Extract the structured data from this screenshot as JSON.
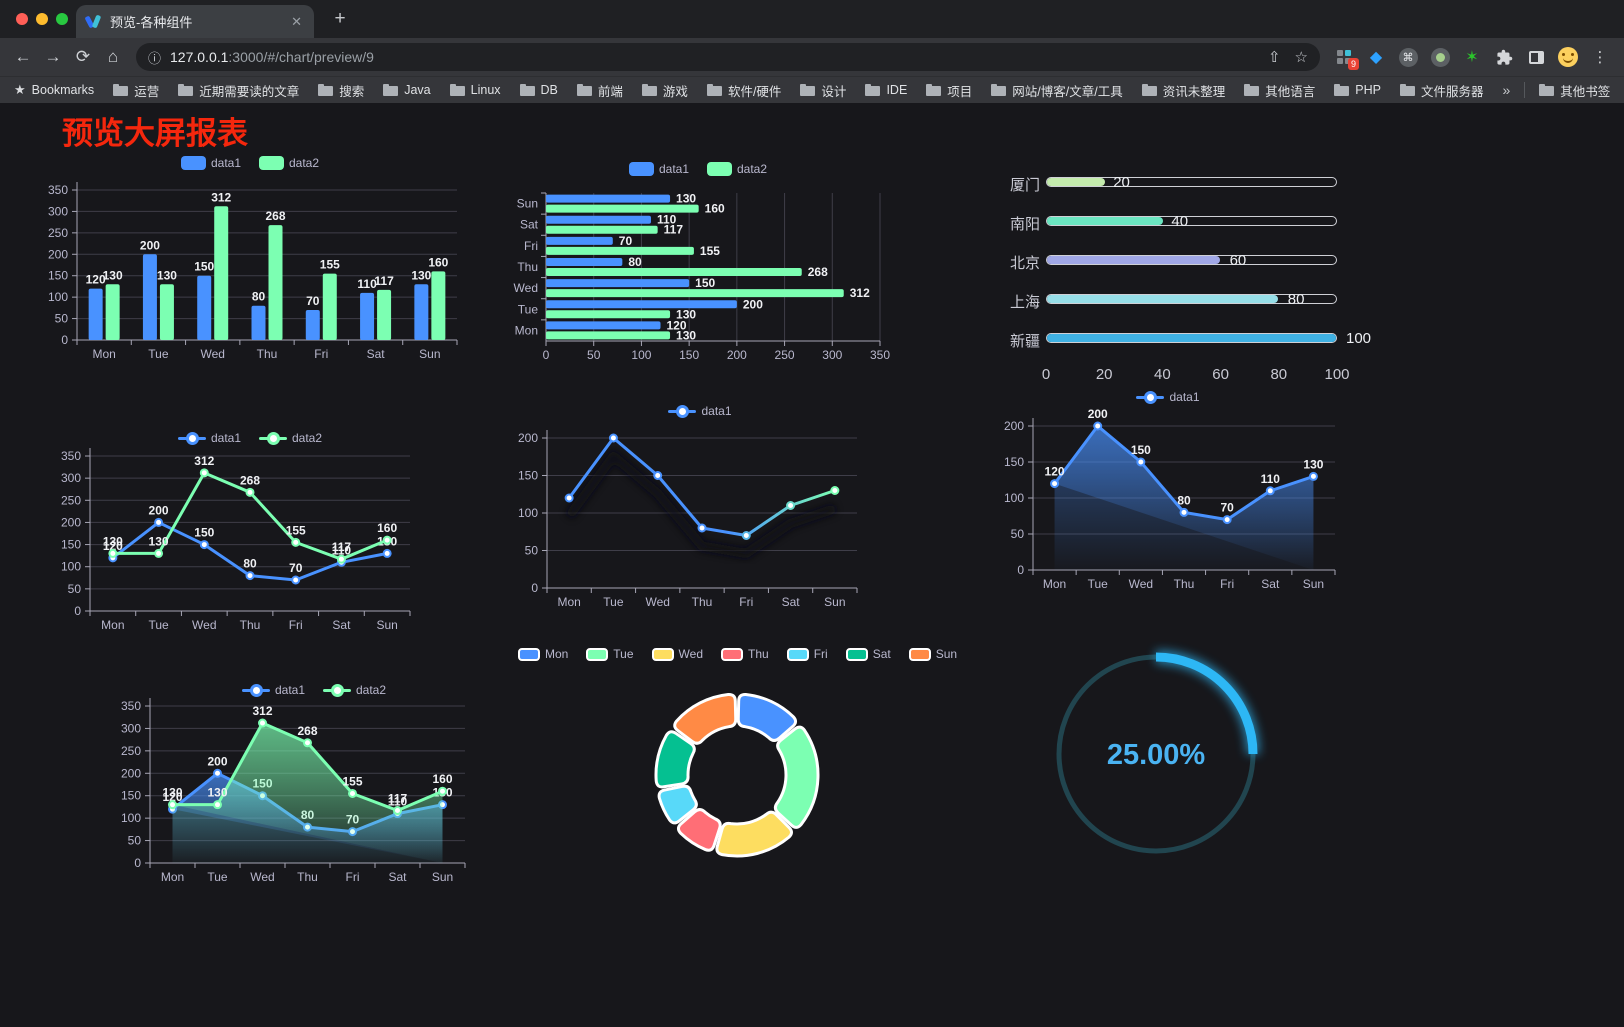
{
  "browser": {
    "tab": {
      "title": "预览-各种组件",
      "close_glyph": "✕"
    },
    "new_tab_glyph": "+",
    "toolbar": {
      "back_glyph": "←",
      "forward_glyph": "→",
      "reload_glyph": "⟳",
      "home_glyph": "⌂",
      "info_glyph": "ⓘ",
      "url_host": "127.0.0.1",
      "url_rest": ":3000/#/chart/preview/9",
      "share_glyph": "⇧",
      "star_glyph": "☆",
      "ext": {
        "badge": "9",
        "gem_glyph": "◆",
        "cmd_glyph": "⌘",
        "star_glyph": "✶",
        "menu_glyph": "⋮"
      }
    },
    "bookmarks": {
      "star_glyph": "★",
      "root_label": "Bookmarks",
      "folders": [
        "运营",
        "近期需要读的文章",
        "搜索",
        "Java",
        "Linux",
        "DB",
        "前端",
        "游戏",
        "软件/硬件",
        "设计",
        "IDE",
        "项目",
        "网站/博客/文章/工具",
        "资讯未整理",
        "其他语言",
        "PHP",
        "文件服务器"
      ],
      "overflow_glyph": "»",
      "other_label": "其他书签"
    }
  },
  "page": {
    "title": "预览大屏报表"
  },
  "chart_data": [
    {
      "id": "bar-vertical",
      "type": "bar",
      "categories": [
        "Mon",
        "Tue",
        "Wed",
        "Thu",
        "Fri",
        "Sat",
        "Sun"
      ],
      "series": [
        {
          "name": "data1",
          "color": "#4992ff",
          "values": [
            120,
            200,
            150,
            80,
            70,
            110,
            130
          ]
        },
        {
          "name": "data2",
          "color": "#7cffb2",
          "values": [
            130,
            130,
            312,
            268,
            155,
            117,
            160
          ]
        }
      ],
      "ylim": [
        0,
        350
      ],
      "yticks": [
        0,
        50,
        100,
        150,
        200,
        250,
        300,
        350
      ],
      "legend_position": "top",
      "grid": true,
      "value_labels": true
    },
    {
      "id": "bar-horizontal",
      "type": "bar-horizontal",
      "categories_top_to_bottom": [
        "Sun",
        "Sat",
        "Fri",
        "Thu",
        "Wed",
        "Tue",
        "Mon"
      ],
      "series": [
        {
          "name": "data1",
          "color": "#4992ff",
          "values": [
            130,
            110,
            70,
            80,
            150,
            200,
            120
          ]
        },
        {
          "name": "data2",
          "color": "#7cffb2",
          "values": [
            160,
            117,
            155,
            268,
            312,
            130,
            130
          ]
        }
      ],
      "xlim": [
        0,
        350
      ],
      "xticks": [
        0,
        50,
        100,
        150,
        200,
        250,
        300,
        350
      ],
      "legend_position": "top",
      "grid": true,
      "value_labels": true
    },
    {
      "id": "progress-bars",
      "type": "progress",
      "max": 100,
      "axis_ticks": [
        0,
        20,
        40,
        60,
        80,
        100
      ],
      "items": [
        {
          "label": "厦门",
          "value": 20,
          "color": "#c4ebad"
        },
        {
          "label": "南阳",
          "value": 40,
          "color": "#6be6c1"
        },
        {
          "label": "北京",
          "value": 60,
          "color": "#a0a7e6"
        },
        {
          "label": "上海",
          "value": 80,
          "color": "#96dee8"
        },
        {
          "label": "新疆",
          "value": 100,
          "color": "#3fb1e3"
        }
      ]
    },
    {
      "id": "line-two-series",
      "type": "line",
      "categories": [
        "Mon",
        "Tue",
        "Wed",
        "Thu",
        "Fri",
        "Sat",
        "Sun"
      ],
      "series": [
        {
          "name": "data1",
          "color": "#4992ff",
          "values": [
            120,
            200,
            150,
            80,
            70,
            110,
            130
          ]
        },
        {
          "name": "data2",
          "color": "#7cffb2",
          "values": [
            130,
            130,
            312,
            268,
            155,
            117,
            160
          ]
        }
      ],
      "ylim": [
        0,
        350
      ],
      "yticks": [
        0,
        50,
        100,
        150,
        200,
        250,
        300,
        350
      ],
      "legend_position": "top",
      "value_labels": true
    },
    {
      "id": "line-gradient",
      "type": "line",
      "categories": [
        "Mon",
        "Tue",
        "Wed",
        "Thu",
        "Fri",
        "Sat",
        "Sun"
      ],
      "series": [
        {
          "name": "data1",
          "color": "#4992ff",
          "gradient": [
            "#4992ff",
            "#7cffb2"
          ],
          "values": [
            120,
            200,
            150,
            80,
            70,
            110,
            130
          ],
          "shadow": true
        }
      ],
      "ylim": [
        0,
        200
      ],
      "yticks": [
        0,
        50,
        100,
        150,
        200
      ],
      "legend_position": "top",
      "value_labels": false
    },
    {
      "id": "area-single",
      "type": "area",
      "categories": [
        "Mon",
        "Tue",
        "Wed",
        "Thu",
        "Fri",
        "Sat",
        "Sun"
      ],
      "series": [
        {
          "name": "data1",
          "color": "#4992ff",
          "area": true,
          "values": [
            120,
            200,
            150,
            80,
            70,
            110,
            130
          ]
        }
      ],
      "ylim": [
        0,
        200
      ],
      "yticks": [
        0,
        50,
        100,
        150,
        200
      ],
      "legend_position": "top",
      "value_labels": true
    },
    {
      "id": "area-two-series",
      "type": "area",
      "categories": [
        "Mon",
        "Tue",
        "Wed",
        "Thu",
        "Fri",
        "Sat",
        "Sun"
      ],
      "series": [
        {
          "name": "data1",
          "color": "#4992ff",
          "area": true,
          "values": [
            120,
            200,
            150,
            80,
            70,
            110,
            130
          ]
        },
        {
          "name": "data2",
          "color": "#7cffb2",
          "area": true,
          "values": [
            130,
            130,
            312,
            268,
            155,
            117,
            160
          ]
        }
      ],
      "ylim": [
        0,
        350
      ],
      "yticks": [
        0,
        50,
        100,
        150,
        200,
        250,
        300,
        350
      ],
      "legend_position": "top",
      "value_labels": true
    },
    {
      "id": "pie-donut",
      "type": "pie",
      "shape": "donut",
      "legend_position": "top",
      "items": [
        {
          "name": "Mon",
          "value": 120,
          "color": "#4992ff"
        },
        {
          "name": "Tue",
          "value": 200,
          "color": "#7cffb2"
        },
        {
          "name": "Wed",
          "value": 150,
          "color": "#fddd60"
        },
        {
          "name": "Thu",
          "value": 80,
          "color": "#ff6e76"
        },
        {
          "name": "Fri",
          "value": 70,
          "color": "#58d9f9"
        },
        {
          "name": "Sat",
          "value": 110,
          "color": "#05c091"
        },
        {
          "name": "Sun",
          "value": 130,
          "color": "#ff8a45"
        }
      ]
    },
    {
      "id": "gauge",
      "type": "gauge",
      "value_percent": 25,
      "display": "25.00%",
      "arc_color": "#2db7f5",
      "track_color": "#21454f",
      "text_color": "#4ab3f2"
    }
  ]
}
